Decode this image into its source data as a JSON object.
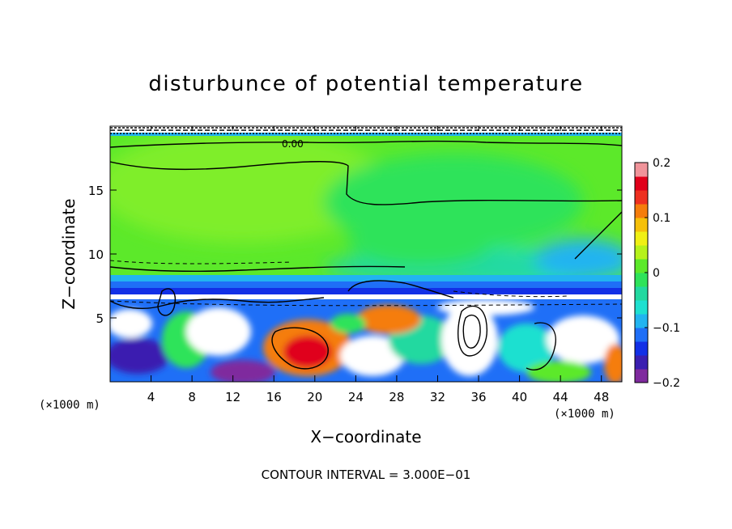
{
  "chart_data": {
    "type": "heatmap",
    "title": "disturbunce of potential temperature",
    "xlabel": "X−coordinate",
    "ylabel": "Z−coordinate",
    "x_unit_left": "(×1000 m)",
    "x_unit_right": "(×1000 m)",
    "xlim": [
      0,
      50
    ],
    "ylim": [
      0,
      20
    ],
    "x_ticks": [
      "4",
      "8",
      "12",
      "16",
      "20",
      "24",
      "28",
      "32",
      "36",
      "40",
      "44",
      "48"
    ],
    "y_ticks": [
      "5",
      "10",
      "15"
    ],
    "x_tick_values": [
      4,
      8,
      12,
      16,
      20,
      24,
      28,
      32,
      36,
      40,
      44,
      48
    ],
    "y_tick_values": [
      5,
      10,
      15
    ],
    "colorbar": {
      "ticks": [
        "0.2",
        "0.1",
        "0",
        "−0.1",
        "−0.2"
      ],
      "tick_values": [
        0.2,
        0.1,
        0,
        -0.1,
        -0.2
      ],
      "range": [
        -0.2,
        0.2
      ],
      "colors": [
        "#7f2a9e",
        "#3a1fb0",
        "#1230e6",
        "#1f6ff7",
        "#22b4f0",
        "#1ee0d0",
        "#22d9a0",
        "#2ee35a",
        "#5ce92a",
        "#b6f21b",
        "#f0f014",
        "#f5c00a",
        "#f57d0c",
        "#ee3020",
        "#e0001a",
        "#f0949a"
      ]
    },
    "contour_label": "0.00",
    "footer": "CONTOUR INTERVAL = 3.000E−01"
  }
}
